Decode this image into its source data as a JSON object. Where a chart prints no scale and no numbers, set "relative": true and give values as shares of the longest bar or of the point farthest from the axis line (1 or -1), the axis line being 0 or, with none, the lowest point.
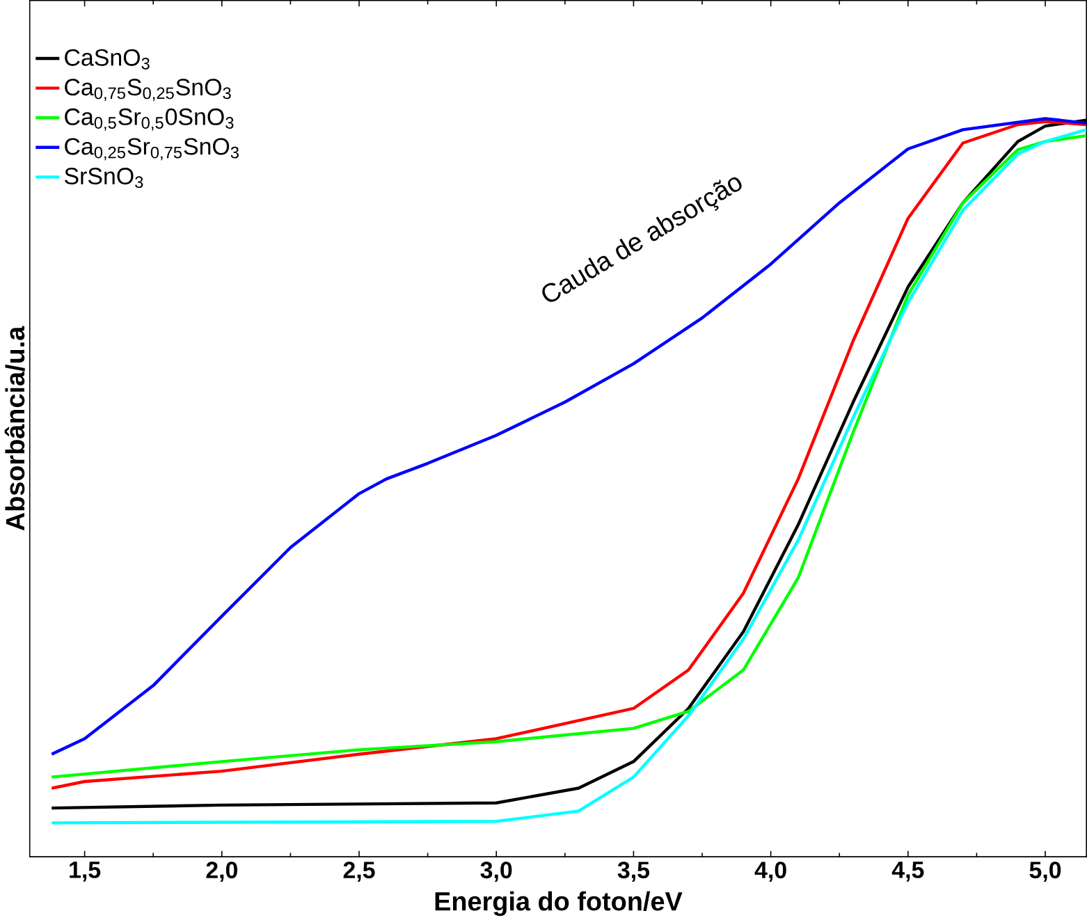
{
  "chart_data": {
    "type": "line",
    "relative": true,
    "xlabel": "Energia do foton/eV",
    "ylabel": "Absorbância/u.a",
    "xlim": [
      1.3,
      5.15
    ],
    "xticks": [
      {
        "value": 1.5,
        "label": "1,5"
      },
      {
        "value": 2.0,
        "label": "2,0"
      },
      {
        "value": 2.5,
        "label": "2,5"
      },
      {
        "value": 3.0,
        "label": "3,0"
      },
      {
        "value": 3.5,
        "label": "3,5"
      },
      {
        "value": 4.0,
        "label": "4,0"
      },
      {
        "value": 4.5,
        "label": "4,5"
      },
      {
        "value": 5.0,
        "label": "5,0"
      }
    ],
    "tick_labels": "x",
    "legend": "top left",
    "grid": false,
    "marker": "none",
    "line_style": "solid",
    "annotations": [
      "Cauda de absorção"
    ],
    "series": [
      {
        "name": "CaSnO$_{3}$",
        "color": "#000000",
        "x": [
          1.38,
          2.0,
          3.0,
          3.3,
          3.5,
          3.7,
          3.9,
          4.1,
          4.3,
          4.5,
          4.7,
          4.9,
          5.0,
          5.15
        ],
        "values": [
          0.066,
          0.07,
          0.073,
          0.093,
          0.129,
          0.201,
          0.305,
          0.45,
          0.616,
          0.772,
          0.886,
          0.969,
          0.99,
          0.998
        ]
      },
      {
        "name": "Ca$_{0,75}$S$_{0,25}$SnO$_{3}$",
        "color": "#ff0000",
        "x": [
          1.38,
          1.5,
          2.0,
          2.5,
          3.0,
          3.5,
          3.7,
          3.9,
          4.1,
          4.3,
          4.5,
          4.7,
          4.9,
          5.0,
          5.15
        ],
        "values": [
          0.093,
          0.102,
          0.116,
          0.139,
          0.16,
          0.201,
          0.253,
          0.357,
          0.512,
          0.699,
          0.865,
          0.967,
          0.992,
          0.996,
          0.992
        ]
      },
      {
        "name": "Ca$_{0,5}$Sr$_{0,5}$0SnO$_{3}$",
        "color": "#00ff00",
        "x": [
          1.38,
          2.0,
          2.5,
          3.0,
          3.5,
          3.7,
          3.9,
          4.1,
          4.3,
          4.5,
          4.7,
          4.9,
          5.0,
          5.15
        ],
        "values": [
          0.108,
          0.129,
          0.145,
          0.156,
          0.174,
          0.197,
          0.253,
          0.378,
          0.575,
          0.761,
          0.886,
          0.958,
          0.969,
          0.977
        ]
      },
      {
        "name": "Ca$_{0,25}$Sr$_{0,75}$SnO$_{3}$",
        "color": "#0000ff",
        "x": [
          1.38,
          1.5,
          1.75,
          2.0,
          2.25,
          2.5,
          2.6,
          2.75,
          3.0,
          3.25,
          3.5,
          3.75,
          4.0,
          4.25,
          4.5,
          4.7,
          5.0,
          5.15
        ],
        "values": [
          0.139,
          0.16,
          0.232,
          0.326,
          0.419,
          0.492,
          0.512,
          0.533,
          0.571,
          0.616,
          0.668,
          0.73,
          0.803,
          0.886,
          0.959,
          0.985,
          1.0,
          0.994
        ]
      },
      {
        "name": "SrSnO$_{3}$",
        "color": "#00ffff",
        "x": [
          1.38,
          3.0,
          3.3,
          3.5,
          3.7,
          3.9,
          4.1,
          4.3,
          4.5,
          4.7,
          4.9,
          5.0,
          5.15
        ],
        "values": [
          0.046,
          0.048,
          0.062,
          0.108,
          0.191,
          0.295,
          0.429,
          0.595,
          0.751,
          0.876,
          0.952,
          0.969,
          0.985
        ]
      }
    ]
  }
}
